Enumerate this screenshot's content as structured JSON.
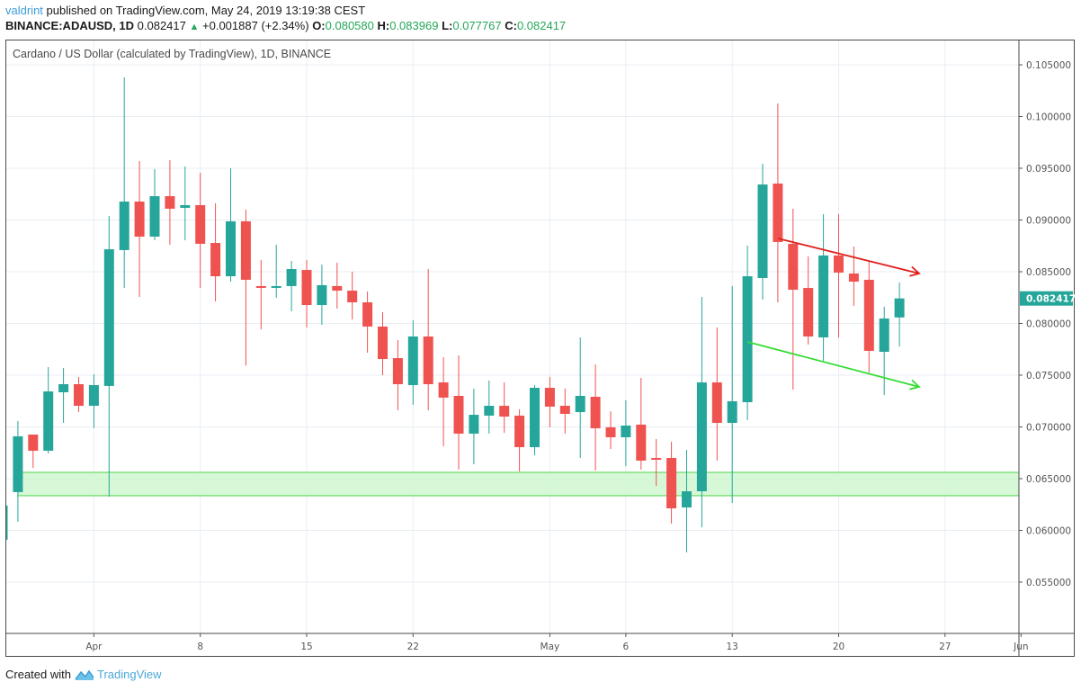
{
  "header": {
    "user": "valdrint",
    "published_text": "published on TradingView.com, May 24, 2019 13:19:38 CEST",
    "symbol": "BINANCE:ADAUSD, 1D",
    "last_price": "0.082417",
    "change_icon": "triangle-up-icon",
    "change": "+0.001887 (+2.34%)",
    "o_label": "O:",
    "o_value": "0.080580",
    "h_label": "H:",
    "h_value": "0.083969",
    "l_label": "L:",
    "l_value": "0.077767",
    "c_label": "C:",
    "c_value": "0.082417"
  },
  "chart_title": "Cardano / US Dollar (calculated by TradingView), 1D, BINANCE",
  "footer": {
    "created_with": "Created with",
    "brand": "TradingView",
    "logo_icon": "tradingview-logo-icon"
  },
  "colors": {
    "up": "#26a69a",
    "down": "#ef5350",
    "zone_fill": "#cff7cf",
    "zone_border": "#4cd44c",
    "red_arrow": "#e0201e",
    "green_arrow": "#33dd33",
    "price_label_bg": "#26a69a",
    "grid": "#e8eef4"
  },
  "chart_data": {
    "type": "candlestick",
    "title": "Cardano / US Dollar (calculated by TradingView), 1D, BINANCE",
    "symbol": "BINANCE:ADAUSD",
    "interval": "1D",
    "xlabel": "",
    "ylabel": "",
    "ylim": [
      0.0505,
      0.108
    ],
    "y_ticks": [
      "0.105000",
      "0.100000",
      "0.095000",
      "0.090000",
      "0.085000",
      "0.080000",
      "0.075000",
      "0.070000",
      "0.065000",
      "0.060000",
      "0.055000"
    ],
    "x_ticks": [
      {
        "label": "Apr",
        "day_index": 6
      },
      {
        "label": "8",
        "day_index": 13
      },
      {
        "label": "15",
        "day_index": 20
      },
      {
        "label": "22",
        "day_index": 27
      },
      {
        "label": "May",
        "day_index": 36
      },
      {
        "label": "6",
        "day_index": 41
      },
      {
        "label": "13",
        "day_index": 48
      },
      {
        "label": "20",
        "day_index": 55
      },
      {
        "label": "27",
        "day_index": 62
      },
      {
        "label": "Jun",
        "day_index": 67
      }
    ],
    "last_price_label": "0.082417",
    "grid": true,
    "candles": [
      {
        "date": "Mar 26",
        "o": 0.05909,
        "h": 0.06239,
        "l": 0.05909,
        "c": 0.06239
      },
      {
        "date": "Mar 27",
        "o": 0.0637,
        "h": 0.07056,
        "l": 0.06083,
        "c": 0.06909
      },
      {
        "date": "Mar 28",
        "o": 0.06926,
        "h": 0.06926,
        "l": 0.06604,
        "c": 0.0677
      },
      {
        "date": "Mar 29",
        "o": 0.0677,
        "h": 0.07578,
        "l": 0.06743,
        "c": 0.07343
      },
      {
        "date": "Mar 30",
        "o": 0.07335,
        "h": 0.07569,
        "l": 0.07039,
        "c": 0.07413
      },
      {
        "date": "Mar 31",
        "o": 0.07413,
        "h": 0.07483,
        "l": 0.07143,
        "c": 0.07204
      },
      {
        "date": "Apr 1",
        "o": 0.07204,
        "h": 0.07509,
        "l": 0.06987,
        "c": 0.07404
      },
      {
        "date": "Apr 2",
        "o": 0.07396,
        "h": 0.09039,
        "l": 0.06326,
        "c": 0.08717
      },
      {
        "date": "Apr 3",
        "o": 0.08709,
        "h": 0.10378,
        "l": 0.08343,
        "c": 0.09178
      },
      {
        "date": "Apr 4",
        "o": 0.09178,
        "h": 0.0957,
        "l": 0.08256,
        "c": 0.08839
      },
      {
        "date": "Apr 5",
        "o": 0.08839,
        "h": 0.09491,
        "l": 0.08804,
        "c": 0.0923
      },
      {
        "date": "Apr 6",
        "o": 0.0923,
        "h": 0.09578,
        "l": 0.08761,
        "c": 0.09109
      },
      {
        "date": "Apr 7",
        "o": 0.09117,
        "h": 0.09517,
        "l": 0.08804,
        "c": 0.09143
      },
      {
        "date": "Apr 8",
        "o": 0.09143,
        "h": 0.09456,
        "l": 0.08343,
        "c": 0.0877
      },
      {
        "date": "Apr 9",
        "o": 0.08778,
        "h": 0.09161,
        "l": 0.08213,
        "c": 0.08456
      },
      {
        "date": "Apr 10",
        "o": 0.08456,
        "h": 0.095,
        "l": 0.08404,
        "c": 0.08987
      },
      {
        "date": "Apr 11",
        "o": 0.08987,
        "h": 0.091,
        "l": 0.07592,
        "c": 0.08422
      },
      {
        "date": "Apr 12",
        "o": 0.08361,
        "h": 0.08613,
        "l": 0.07943,
        "c": 0.08352
      },
      {
        "date": "Apr 13",
        "o": 0.08352,
        "h": 0.08761,
        "l": 0.08248,
        "c": 0.08361
      },
      {
        "date": "Apr 14",
        "o": 0.08361,
        "h": 0.08604,
        "l": 0.08117,
        "c": 0.08526
      },
      {
        "date": "Apr 15",
        "o": 0.08517,
        "h": 0.08613,
        "l": 0.07961,
        "c": 0.08178
      },
      {
        "date": "Apr 16",
        "o": 0.08178,
        "h": 0.0857,
        "l": 0.07987,
        "c": 0.0837
      },
      {
        "date": "Apr 17",
        "o": 0.08361,
        "h": 0.08587,
        "l": 0.08143,
        "c": 0.08317
      },
      {
        "date": "Apr 18",
        "o": 0.08317,
        "h": 0.085,
        "l": 0.08039,
        "c": 0.08204
      },
      {
        "date": "Apr 19",
        "o": 0.08204,
        "h": 0.08309,
        "l": 0.07717,
        "c": 0.0797
      },
      {
        "date": "Apr 20",
        "o": 0.0797,
        "h": 0.08109,
        "l": 0.075,
        "c": 0.07656
      },
      {
        "date": "Apr 21",
        "o": 0.07665,
        "h": 0.07839,
        "l": 0.07161,
        "c": 0.07413
      },
      {
        "date": "Apr 22",
        "o": 0.07404,
        "h": 0.0803,
        "l": 0.07213,
        "c": 0.07874
      },
      {
        "date": "Apr 23",
        "o": 0.07874,
        "h": 0.08526,
        "l": 0.07161,
        "c": 0.07413
      },
      {
        "date": "Apr 24",
        "o": 0.0743,
        "h": 0.07674,
        "l": 0.06813,
        "c": 0.07283
      },
      {
        "date": "Apr 25",
        "o": 0.073,
        "h": 0.07691,
        "l": 0.06587,
        "c": 0.06935
      },
      {
        "date": "Apr 26",
        "o": 0.06935,
        "h": 0.0737,
        "l": 0.06639,
        "c": 0.07117
      },
      {
        "date": "Apr 27",
        "o": 0.07109,
        "h": 0.07448,
        "l": 0.06935,
        "c": 0.07204
      },
      {
        "date": "Apr 28",
        "o": 0.07204,
        "h": 0.0743,
        "l": 0.06943,
        "c": 0.071
      },
      {
        "date": "Apr 29",
        "o": 0.07109,
        "h": 0.0717,
        "l": 0.0657,
        "c": 0.06804
      },
      {
        "date": "Apr 30",
        "o": 0.06804,
        "h": 0.07404,
        "l": 0.06726,
        "c": 0.07378
      },
      {
        "date": "May 1",
        "o": 0.07378,
        "h": 0.07483,
        "l": 0.06996,
        "c": 0.07196
      },
      {
        "date": "May 2",
        "o": 0.07204,
        "h": 0.0737,
        "l": 0.06935,
        "c": 0.07126
      },
      {
        "date": "May 3",
        "o": 0.07143,
        "h": 0.07865,
        "l": 0.067,
        "c": 0.073
      },
      {
        "date": "May 4",
        "o": 0.07291,
        "h": 0.07604,
        "l": 0.06578,
        "c": 0.06987
      },
      {
        "date": "May 5",
        "o": 0.06996,
        "h": 0.07152,
        "l": 0.06787,
        "c": 0.069
      },
      {
        "date": "May 6",
        "o": 0.069,
        "h": 0.07257,
        "l": 0.06622,
        "c": 0.07013
      },
      {
        "date": "May 7",
        "o": 0.07022,
        "h": 0.07474,
        "l": 0.06587,
        "c": 0.06674
      },
      {
        "date": "May 8",
        "o": 0.067,
        "h": 0.06883,
        "l": 0.0643,
        "c": 0.06691
      },
      {
        "date": "May 9",
        "o": 0.067,
        "h": 0.06857,
        "l": 0.06065,
        "c": 0.06213
      },
      {
        "date": "May 10",
        "o": 0.06222,
        "h": 0.06778,
        "l": 0.05787,
        "c": 0.06378
      },
      {
        "date": "May 11",
        "o": 0.06378,
        "h": 0.08256,
        "l": 0.0603,
        "c": 0.0743
      },
      {
        "date": "May 12",
        "o": 0.0743,
        "h": 0.07961,
        "l": 0.06674,
        "c": 0.07039
      },
      {
        "date": "May 13",
        "o": 0.07039,
        "h": 0.08361,
        "l": 0.06265,
        "c": 0.07248
      },
      {
        "date": "May 14",
        "o": 0.07239,
        "h": 0.08752,
        "l": 0.07065,
        "c": 0.08456
      },
      {
        "date": "May 15",
        "o": 0.08439,
        "h": 0.09543,
        "l": 0.0823,
        "c": 0.09343
      },
      {
        "date": "May 16",
        "o": 0.09352,
        "h": 0.10126,
        "l": 0.08204,
        "c": 0.08787
      },
      {
        "date": "May 17",
        "o": 0.0877,
        "h": 0.09109,
        "l": 0.07361,
        "c": 0.08326
      },
      {
        "date": "May 18",
        "o": 0.08343,
        "h": 0.08648,
        "l": 0.07796,
        "c": 0.07874
      },
      {
        "date": "May 19",
        "o": 0.07865,
        "h": 0.09057,
        "l": 0.07639,
        "c": 0.08657
      },
      {
        "date": "May 20",
        "o": 0.08657,
        "h": 0.09057,
        "l": 0.07865,
        "c": 0.08491
      },
      {
        "date": "May 21",
        "o": 0.08483,
        "h": 0.08743,
        "l": 0.0817,
        "c": 0.08404
      },
      {
        "date": "May 22",
        "o": 0.08422,
        "h": 0.08604,
        "l": 0.07526,
        "c": 0.07735
      },
      {
        "date": "May 23",
        "o": 0.07726,
        "h": 0.08161,
        "l": 0.07309,
        "c": 0.08048
      },
      {
        "date": "May 24",
        "o": 0.08058,
        "h": 0.08397,
        "l": 0.07777,
        "c": 0.08242
      }
    ],
    "annotations": [
      {
        "type": "rectangle",
        "label": "support-zone",
        "y_top": 0.06561,
        "y_bottom": 0.06335,
        "from_day_index": 1,
        "to": "right-edge"
      },
      {
        "type": "arrow",
        "color": "red",
        "from": {
          "day_index": 51,
          "price": 0.08822
        },
        "to": {
          "day_index": 60,
          "price": 0.08483
        }
      },
      {
        "type": "arrow",
        "color": "green",
        "from": {
          "day_index": 49,
          "price": 0.07822
        },
        "to": {
          "day_index": 60,
          "price": 0.07387
        }
      }
    ]
  }
}
